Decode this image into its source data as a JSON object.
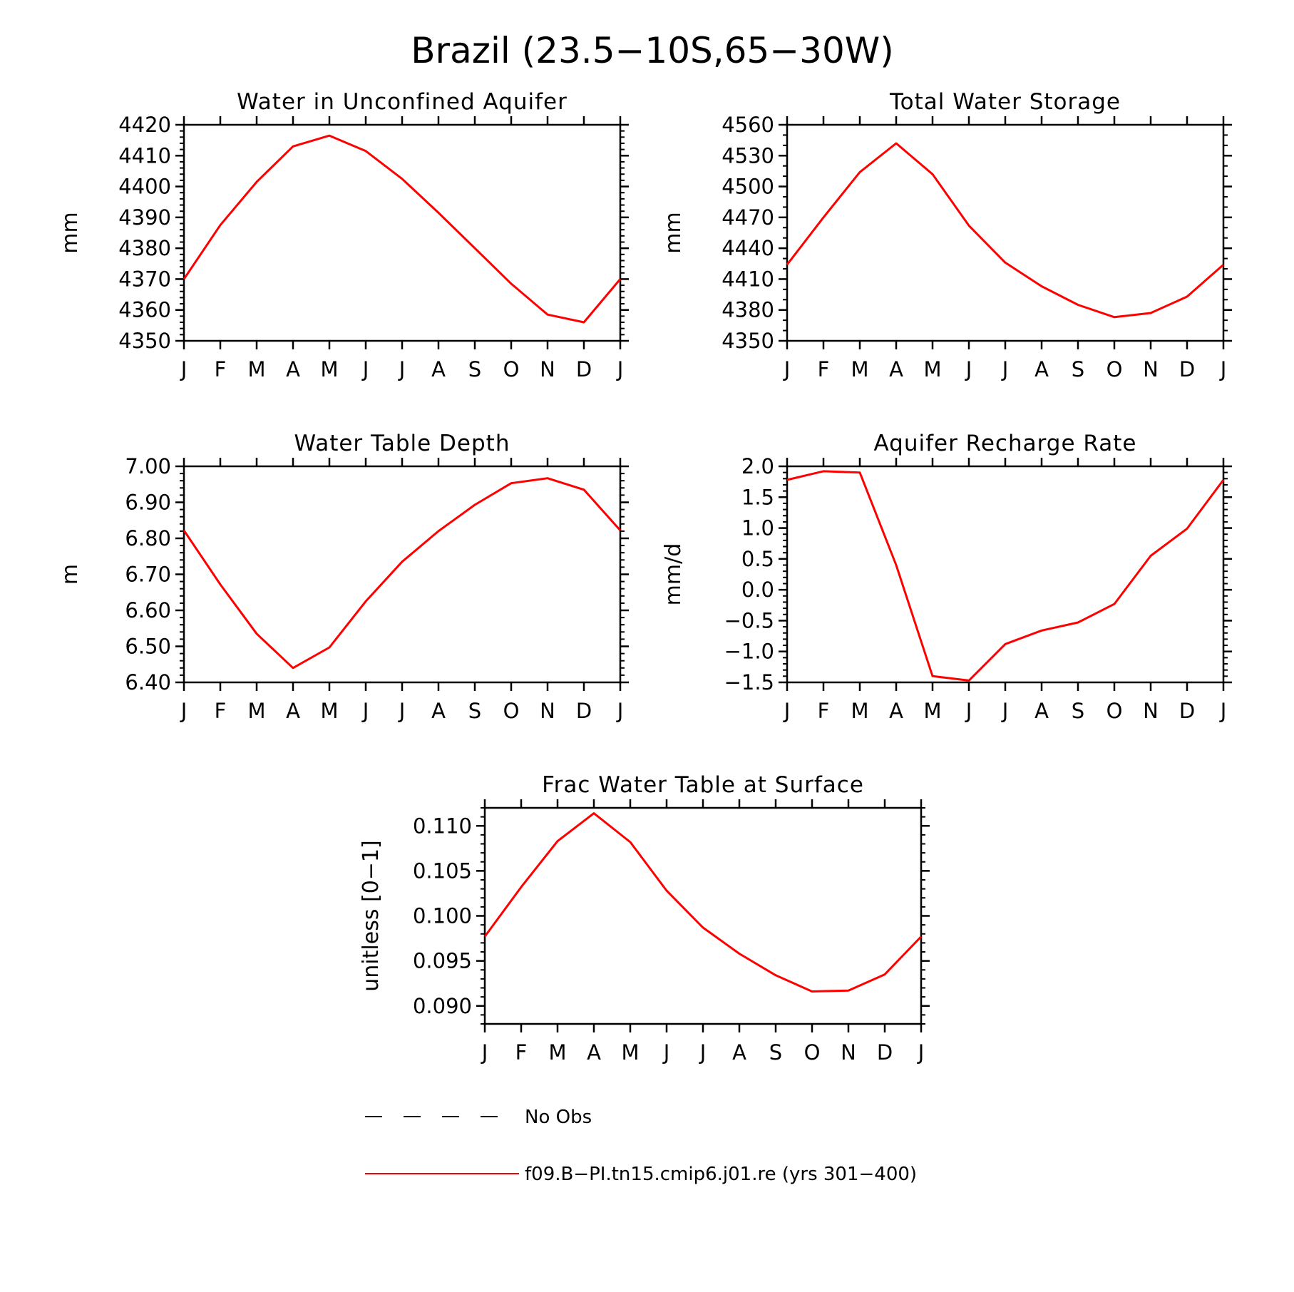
{
  "title": "Brazil (23.5−10S,65−30W)",
  "colors": {
    "model_line": "#ff0000",
    "axes": "#000000"
  },
  "months": [
    "J",
    "F",
    "M",
    "A",
    "M",
    "J",
    "J",
    "A",
    "S",
    "O",
    "N",
    "D",
    "J"
  ],
  "chart_data": [
    {
      "type": "line",
      "title": "Water in Unconfined Aquifer",
      "ylabel": "mm",
      "ylim": [
        4350,
        4420
      ],
      "yticks": [
        4350,
        4360,
        4370,
        4380,
        4390,
        4400,
        4410,
        4420
      ],
      "ytick_labels": [
        "4350",
        "4360",
        "4370",
        "4380",
        "4390",
        "4400",
        "4410",
        "4420"
      ],
      "yminor": 5,
      "x": [
        0,
        1,
        2,
        3,
        4,
        5,
        6,
        7,
        8,
        9,
        10,
        11,
        12
      ],
      "series": [
        {
          "values": [
            4370.0,
            4387.5,
            4401.5,
            4413.0,
            4416.5,
            4411.5,
            4402.5,
            4391.5,
            4380.0,
            4368.5,
            4358.5,
            4356.0,
            4370.0
          ]
        }
      ]
    },
    {
      "type": "line",
      "title": "Total Water Storage",
      "ylabel": "mm",
      "ylim": [
        4350,
        4560
      ],
      "yticks": [
        4350,
        4380,
        4410,
        4440,
        4470,
        4500,
        4530,
        4560
      ],
      "ytick_labels": [
        "4350",
        "4380",
        "4410",
        "4440",
        "4470",
        "4500",
        "4530",
        "4560"
      ],
      "yminor": 3,
      "x": [
        0,
        1,
        2,
        3,
        4,
        5,
        6,
        7,
        8,
        9,
        10,
        11,
        12
      ],
      "series": [
        {
          "values": [
            4424,
            4470,
            4514,
            4542,
            4512,
            4462,
            4426,
            4403,
            4385,
            4373,
            4377,
            4393,
            4424
          ]
        }
      ]
    },
    {
      "type": "line",
      "title": "Water Table Depth",
      "ylabel": "m",
      "ylim": [
        6.4,
        7.0
      ],
      "yticks": [
        6.4,
        6.5,
        6.6,
        6.7,
        6.8,
        6.9,
        7.0
      ],
      "ytick_labels": [
        "6.40",
        "6.50",
        "6.60",
        "6.70",
        "6.80",
        "6.90",
        "7.00"
      ],
      "yminor": 5,
      "x": [
        0,
        1,
        2,
        3,
        4,
        5,
        6,
        7,
        8,
        9,
        10,
        11,
        12
      ],
      "series": [
        {
          "values": [
            6.822,
            6.672,
            6.535,
            6.44,
            6.497,
            6.625,
            6.735,
            6.82,
            6.893,
            6.953,
            6.967,
            6.935,
            6.822
          ]
        }
      ]
    },
    {
      "type": "line",
      "title": "Aquifer Recharge Rate",
      "ylabel": "mm/d",
      "ylim": [
        -1.5,
        2.0
      ],
      "yticks": [
        -1.5,
        -1.0,
        -0.5,
        0.0,
        0.5,
        1.0,
        1.5,
        2.0
      ],
      "ytick_labels": [
        "−1.5",
        "−1.0",
        "−0.5",
        "0.0",
        "0.5",
        "1.0",
        "1.5",
        "2.0"
      ],
      "yminor": 5,
      "x": [
        0,
        1,
        2,
        3,
        4,
        5,
        6,
        7,
        8,
        9,
        10,
        11,
        12
      ],
      "series": [
        {
          "values": [
            1.78,
            1.92,
            1.9,
            0.4,
            -1.4,
            -1.47,
            -0.88,
            -0.66,
            -0.53,
            -0.23,
            0.55,
            0.99,
            1.78
          ]
        }
      ]
    },
    {
      "type": "line",
      "title": "Frac Water Table at Surface",
      "ylabel": "unitless [0−1]",
      "ylim": [
        0.088,
        0.112
      ],
      "yticks": [
        0.09,
        0.095,
        0.1,
        0.105,
        0.11
      ],
      "ytick_labels": [
        "0.090",
        "0.095",
        "0.100",
        "0.105",
        "0.110"
      ],
      "yminor": 5,
      "x": [
        0,
        1,
        2,
        3,
        4,
        5,
        6,
        7,
        8,
        9,
        10,
        11,
        12
      ],
      "series": [
        {
          "values": [
            0.0977,
            0.1032,
            0.1083,
            0.1114,
            0.1082,
            0.1028,
            0.0987,
            0.0958,
            0.0934,
            0.0916,
            0.0917,
            0.0935,
            0.0977
          ]
        }
      ]
    }
  ],
  "legend": {
    "entries": [
      {
        "label": "No Obs",
        "style": "dashed",
        "color": "#000000"
      },
      {
        "label": "f09.B−PI.tn15.cmip6.j01.re (yrs 301−400)",
        "style": "solid",
        "color": "#ff0000"
      }
    ]
  }
}
